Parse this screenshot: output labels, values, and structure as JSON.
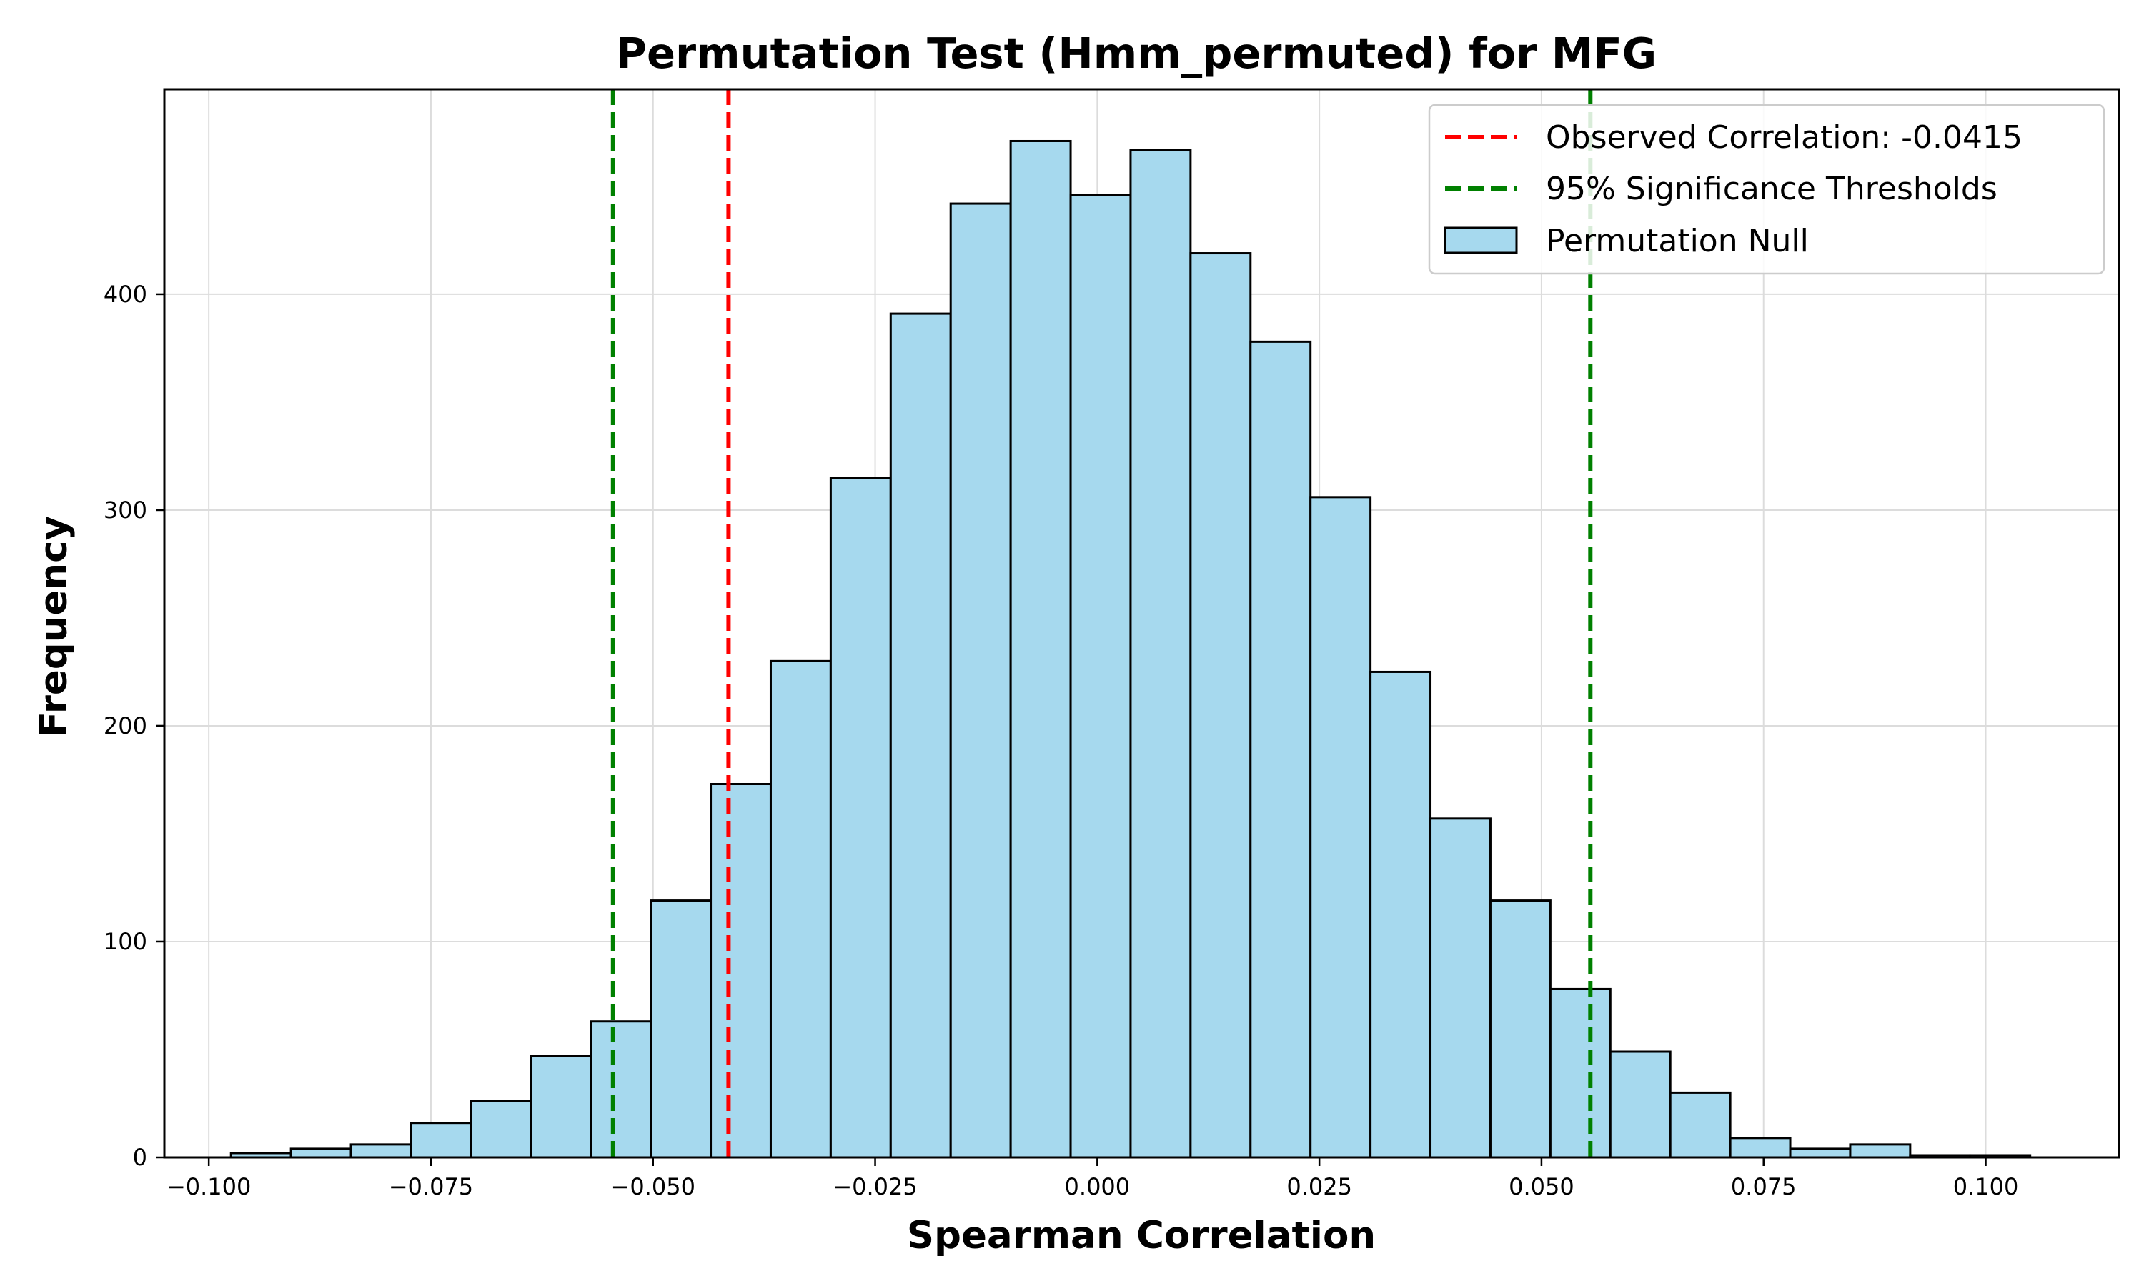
{
  "chart_data": {
    "type": "histogram",
    "title": "Permutation Test (Hmm_permuted) for MFG",
    "xlabel": "Spearman Correlation",
    "ylabel": "Frequency",
    "xlim": [
      -0.105,
      0.115
    ],
    "ylim": [
      0,
      495
    ],
    "xticks": [
      -0.1,
      -0.075,
      -0.05,
      -0.025,
      0.0,
      0.025,
      0.05,
      0.075,
      0.1
    ],
    "xtick_labels": [
      "−0.100",
      "−0.075",
      "−0.050",
      "−0.025",
      "0.000",
      "0.025",
      "0.050",
      "0.075",
      "0.100"
    ],
    "yticks": [
      0,
      100,
      200,
      300,
      400
    ],
    "ytick_labels": [
      "0",
      "100",
      "200",
      "300",
      "400"
    ],
    "grid": true,
    "legend_position": "top-right",
    "bin_start": -0.0975,
    "bin_width": 0.00675,
    "bin_counts": [
      2,
      4,
      6,
      16,
      26,
      47,
      63,
      119,
      173,
      230,
      315,
      391,
      442,
      471,
      446,
      467,
      419,
      378,
      306,
      225,
      157,
      119,
      78,
      49,
      30,
      9,
      4,
      6,
      1,
      1
    ],
    "observed_correlation": -0.0415,
    "thresholds": [
      -0.0545,
      0.0555
    ],
    "series": [
      {
        "name": "Observed Correlation: -0.0415",
        "kind": "vline",
        "color": "#ff0000",
        "style": "dashed"
      },
      {
        "name": "95% Significance Thresholds",
        "kind": "vline",
        "color": "#008000",
        "style": "dashed"
      },
      {
        "name": "Permutation Null",
        "kind": "bars",
        "color": "#a6d9ee"
      }
    ]
  }
}
